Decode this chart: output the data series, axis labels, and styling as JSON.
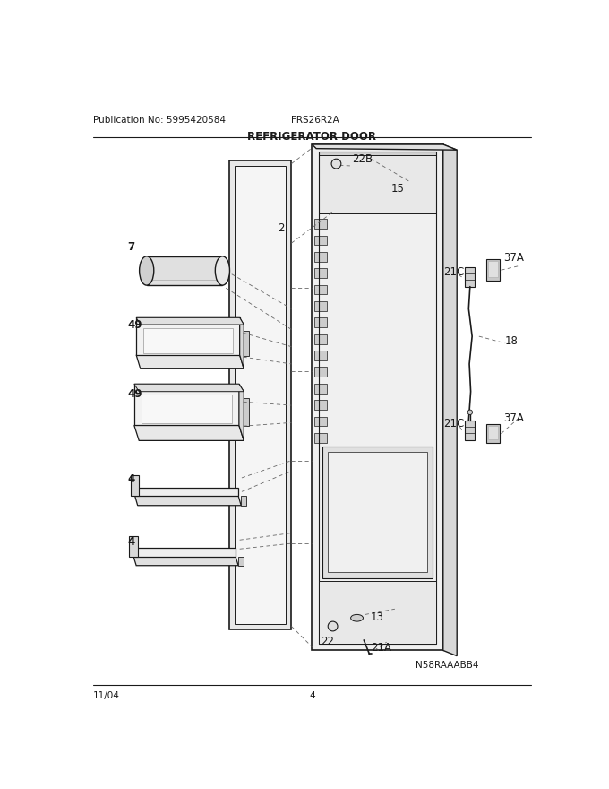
{
  "title": "REFRIGERATOR DOOR",
  "pub_no": "Publication No: 5995420584",
  "model": "FRS26R2A",
  "date": "11/04",
  "page": "4",
  "part_id": "N58RAAABB4",
  "bg_color": "#ffffff",
  "line_color": "#1a1a1a",
  "gray_light": "#e8e8e8",
  "gray_mid": "#cccccc",
  "gray_dark": "#999999"
}
